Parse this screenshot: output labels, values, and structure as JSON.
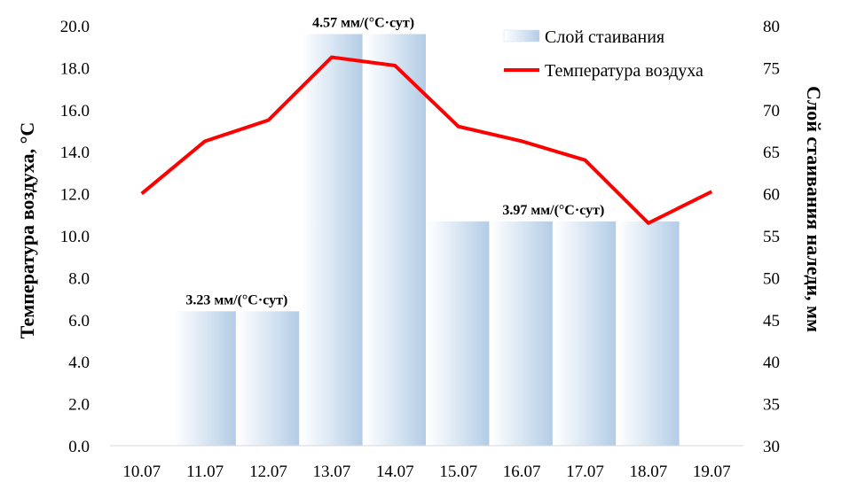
{
  "chart_data": {
    "type": "bar+line",
    "categories": [
      "10.07",
      "11.07",
      "12.07",
      "13.07",
      "14.07",
      "15.07",
      "16.07",
      "17.07",
      "18.07",
      "19.07"
    ],
    "series": [
      {
        "name": "Слой стаивания",
        "type": "bar",
        "axis": "right",
        "values": [
          null,
          46,
          46,
          79,
          79,
          56.7,
          56.7,
          56.7,
          56.7,
          null
        ],
        "color": "#bcd3ea"
      },
      {
        "name": "Температура воздуха",
        "type": "line",
        "axis": "left",
        "values": [
          12.0,
          14.5,
          15.5,
          18.5,
          18.1,
          15.2,
          14.5,
          13.6,
          10.6,
          12.1
        ],
        "color": "#ff0000"
      }
    ],
    "y_left": {
      "label": "Температура воздуха, °C",
      "ylim": [
        0,
        20
      ],
      "ticks": [
        "0.0",
        "2.0",
        "4.0",
        "6.0",
        "8.0",
        "10.0",
        "12.0",
        "14.0",
        "16.0",
        "18.0",
        "20.0"
      ]
    },
    "y_right": {
      "label": "Слой стаивания наледи, мм",
      "ylim": [
        30,
        80
      ],
      "ticks": [
        "30",
        "35",
        "40",
        "45",
        "50",
        "55",
        "60",
        "65",
        "70",
        "75",
        "80"
      ]
    },
    "annotations": [
      {
        "text": "3.23 мм/(°C·сут)",
        "category_index": 1.5,
        "value": 46
      },
      {
        "text": "4.57 мм/(°C·сут)",
        "category_index": 3.5,
        "value": 79
      },
      {
        "text": "3.97 мм/(°C·сут)",
        "category_index": 6.5,
        "value": 56.7
      }
    ],
    "legend_position": "top-right",
    "grid": false
  }
}
